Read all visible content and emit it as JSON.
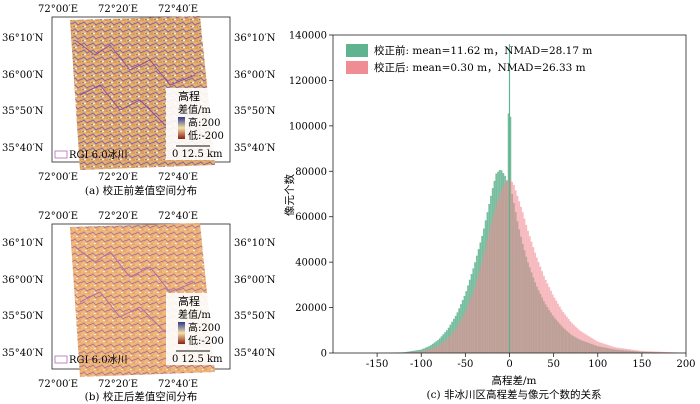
{
  "maps": [
    {
      "caption": "(a) 校正前差值空间分布",
      "lon_ticks": [
        "72°00′E",
        "72°20′E",
        "72°40′E"
      ],
      "lat_ticks": [
        "36°10′N",
        "36°00′N",
        "35°50′N",
        "35°40′N"
      ],
      "legend_title_1": "高程",
      "legend_title_2": "差值/m",
      "legend_high": "高:200",
      "legend_low": "低:-200",
      "scale_text": "0   12.5 km",
      "glacier_label": "RGI 6.0冰川"
    },
    {
      "caption": "(b) 校正后差值空间分布",
      "lon_ticks": [
        "72°00′E",
        "72°20′E",
        "72°40′E"
      ],
      "lat_ticks": [
        "36°10′N",
        "36°00′N",
        "35°50′N",
        "35°40′N"
      ],
      "legend_title_1": "高程",
      "legend_title_2": "差值/m",
      "legend_high": "高:200",
      "legend_low": "低:-200",
      "scale_text": "0   12.5 km",
      "glacier_label": "RGI 6.0冰川"
    }
  ],
  "chart_data": {
    "type": "bar",
    "caption": "(c) 非冰川区高程差与像元个数的关系",
    "xlabel": "高程差/m",
    "ylabel": "像元个数",
    "xlim": [
      -200,
      200
    ],
    "ylim": [
      0,
      140000
    ],
    "xticks": [
      -150,
      -100,
      -50,
      0,
      50,
      100,
      150,
      200
    ],
    "yticks": [
      0,
      20000,
      40000,
      60000,
      80000,
      100000,
      120000,
      140000
    ],
    "legend_position": "top-left",
    "series": [
      {
        "name": "校正前: mean=11.62 m，NMAD=28.17 m",
        "color": "#5fb38e",
        "x": [
          -200,
          -150,
          -120,
          -100,
          -90,
          -80,
          -70,
          -60,
          -50,
          -40,
          -30,
          -25,
          -20,
          -15,
          -10,
          -5,
          -2,
          0,
          2,
          5,
          10,
          15,
          20,
          30,
          40,
          50,
          60,
          70,
          80,
          100,
          120,
          150,
          200
        ],
        "y": [
          0,
          50,
          300,
          1500,
          3200,
          6000,
          10500,
          17000,
          26000,
          38500,
          53000,
          62000,
          71000,
          79000,
          81000,
          78000,
          75000,
          136000,
          72000,
          66000,
          56000,
          48000,
          41000,
          30000,
          22000,
          16000,
          11500,
          8000,
          5800,
          3000,
          1500,
          500,
          0
        ]
      },
      {
        "name": "校正后: mean=0.30 m，NMAD=26.33 m",
        "color": "#f08c94",
        "x": [
          -200,
          -150,
          -120,
          -100,
          -90,
          -80,
          -70,
          -60,
          -50,
          -40,
          -30,
          -20,
          -15,
          -10,
          -5,
          0,
          2,
          5,
          10,
          15,
          20,
          30,
          40,
          50,
          60,
          70,
          80,
          100,
          120,
          150,
          200
        ],
        "y": [
          0,
          20,
          150,
          700,
          1600,
          3300,
          6300,
          11000,
          18000,
          28000,
          42000,
          58000,
          65000,
          71000,
          75000,
          77000,
          76000,
          74000,
          68000,
          62000,
          55000,
          43000,
          33000,
          25000,
          18500,
          13500,
          9800,
          5000,
          2500,
          900,
          100
        ]
      }
    ]
  }
}
